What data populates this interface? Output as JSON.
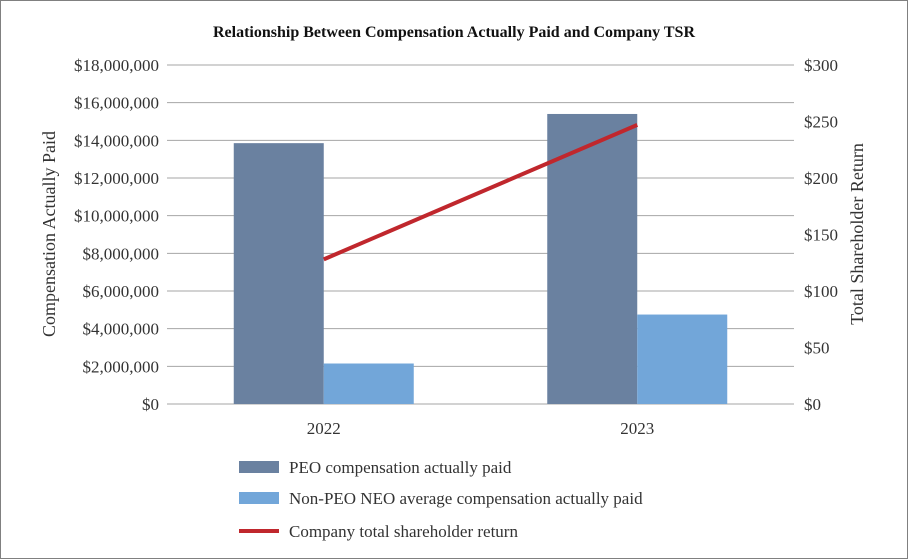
{
  "chart_data": {
    "type": "bar",
    "title": "Relationship Between Compensation Actually Paid and Company TSR",
    "categories": [
      "2022",
      "2023"
    ],
    "series": [
      {
        "name": "PEO compensation actually paid",
        "kind": "bar",
        "axis": "left",
        "color": "#6a81a0",
        "values": [
          13850000,
          15400000
        ]
      },
      {
        "name": "Non-PEO NEO average compensation actually paid",
        "kind": "bar",
        "axis": "left",
        "color": "#72a6d9",
        "values": [
          2150000,
          4750000
        ]
      },
      {
        "name": "Company total shareholder return",
        "kind": "line",
        "axis": "right",
        "color": "#c0272d",
        "values": [
          128,
          247
        ]
      }
    ],
    "ylabel_left": "Compensation Actually Paid",
    "ylabel_right": "Total Shareholder Return",
    "ylim_left": [
      0,
      18000000
    ],
    "ylim_right": [
      0,
      300
    ],
    "yticks_left": [
      "$0",
      "$2,000,000",
      "$4,000,000",
      "$6,000,000",
      "$8,000,000",
      "$10,000,000",
      "$12,000,000",
      "$14,000,000",
      "$16,000,000",
      "$18,000,000"
    ],
    "yticks_right": [
      "$0",
      "$50",
      "$100",
      "$150",
      "$200",
      "$250",
      "$300"
    ],
    "grid": true,
    "legend_position": "bottom"
  },
  "colors": {
    "grid": "#a6a6a6",
    "border": "#808080"
  }
}
